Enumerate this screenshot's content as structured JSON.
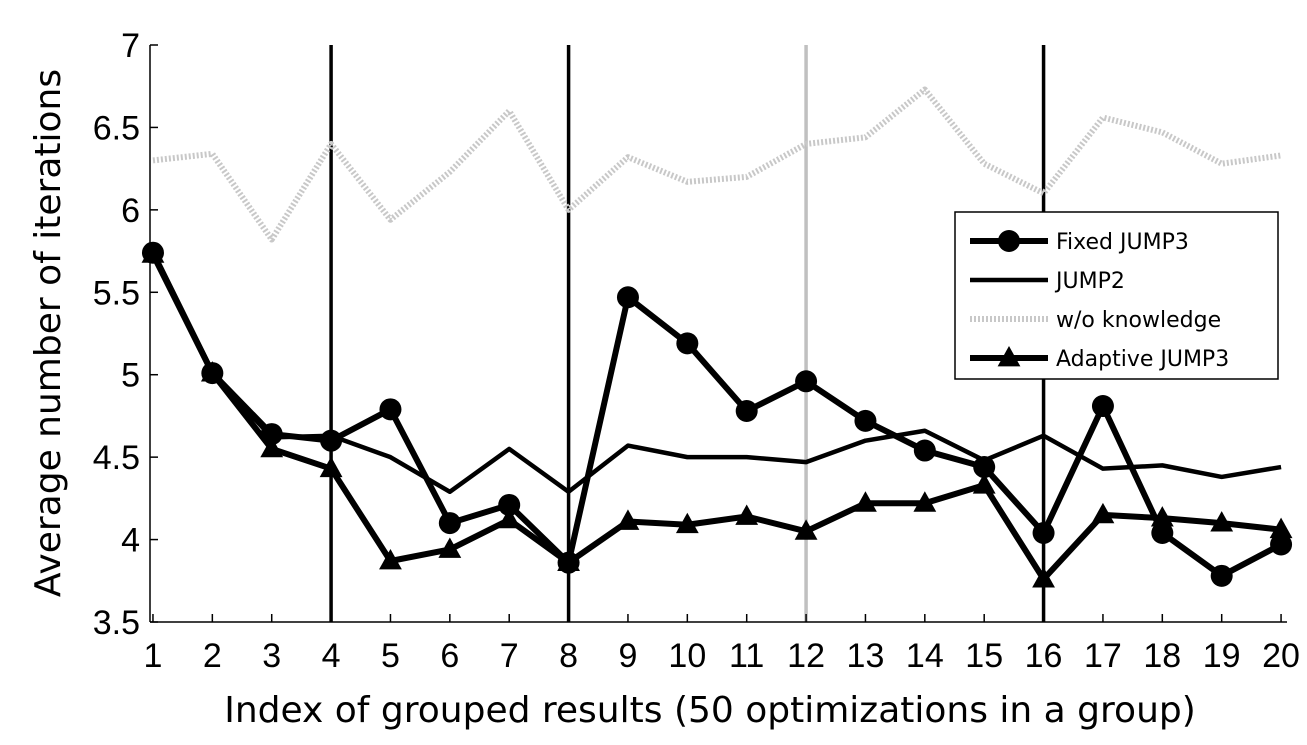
{
  "chart_data": {
    "type": "line",
    "xlabel": "Index of grouped results (50 optimizations in a group)",
    "ylabel": "Average number of iterations",
    "x": [
      1,
      2,
      3,
      4,
      5,
      6,
      7,
      8,
      9,
      10,
      11,
      12,
      13,
      14,
      15,
      16,
      17,
      18,
      19,
      20
    ],
    "xlim": [
      0.95,
      20.1
    ],
    "ylim": [
      3.5,
      7
    ],
    "xticks": [
      "1",
      "2",
      "3",
      "4",
      "5",
      "6",
      "7",
      "8",
      "9",
      "10",
      "11",
      "12",
      "13",
      "14",
      "15",
      "16",
      "17",
      "18",
      "19",
      "20"
    ],
    "yticks": [
      "3.5",
      "4",
      "4.5",
      "5",
      "5.5",
      "6",
      "6.5",
      "7"
    ],
    "ytick_values": [
      3.5,
      4,
      4.5,
      5,
      5.5,
      6,
      6.5,
      7
    ],
    "vlines": [
      {
        "x": 4,
        "color": "#000000"
      },
      {
        "x": 8,
        "color": "#000000"
      },
      {
        "x": 12,
        "color": "#c0c0c0"
      },
      {
        "x": 16,
        "color": "#000000"
      }
    ],
    "legend_position": "right",
    "series": [
      {
        "name": "Fixed JUMP3",
        "style": "circle",
        "color": "#000000",
        "values": [
          5.74,
          5.01,
          4.64,
          4.6,
          4.79,
          4.1,
          4.21,
          3.86,
          5.47,
          5.19,
          4.78,
          4.96,
          4.72,
          4.54,
          4.44,
          4.04,
          4.81,
          4.04,
          3.78,
          3.97
        ]
      },
      {
        "name": "JUMP2",
        "style": "solid",
        "color": "#000000",
        "values": [
          5.74,
          5.01,
          4.62,
          4.63,
          4.5,
          4.29,
          4.55,
          4.29,
          4.57,
          4.5,
          4.5,
          4.47,
          4.6,
          4.66,
          4.48,
          4.63,
          4.43,
          4.45,
          4.38,
          4.44
        ]
      },
      {
        "name": "w/o knowledge",
        "style": "dotted",
        "color": "#c8c8c8",
        "values": [
          6.3,
          6.34,
          5.82,
          6.4,
          5.94,
          6.23,
          6.6,
          6.0,
          6.32,
          6.17,
          6.2,
          6.4,
          6.44,
          6.73,
          6.28,
          6.1,
          6.56,
          6.47,
          6.28,
          6.33
        ]
      },
      {
        "name": "Adaptive JUMP3",
        "style": "triangle",
        "color": "#000000",
        "values": [
          5.73,
          5.01,
          4.55,
          4.43,
          3.87,
          3.94,
          4.12,
          3.86,
          4.11,
          4.09,
          4.14,
          4.05,
          4.22,
          4.22,
          4.33,
          3.76,
          4.15,
          4.13,
          4.1,
          4.06
        ]
      }
    ]
  }
}
